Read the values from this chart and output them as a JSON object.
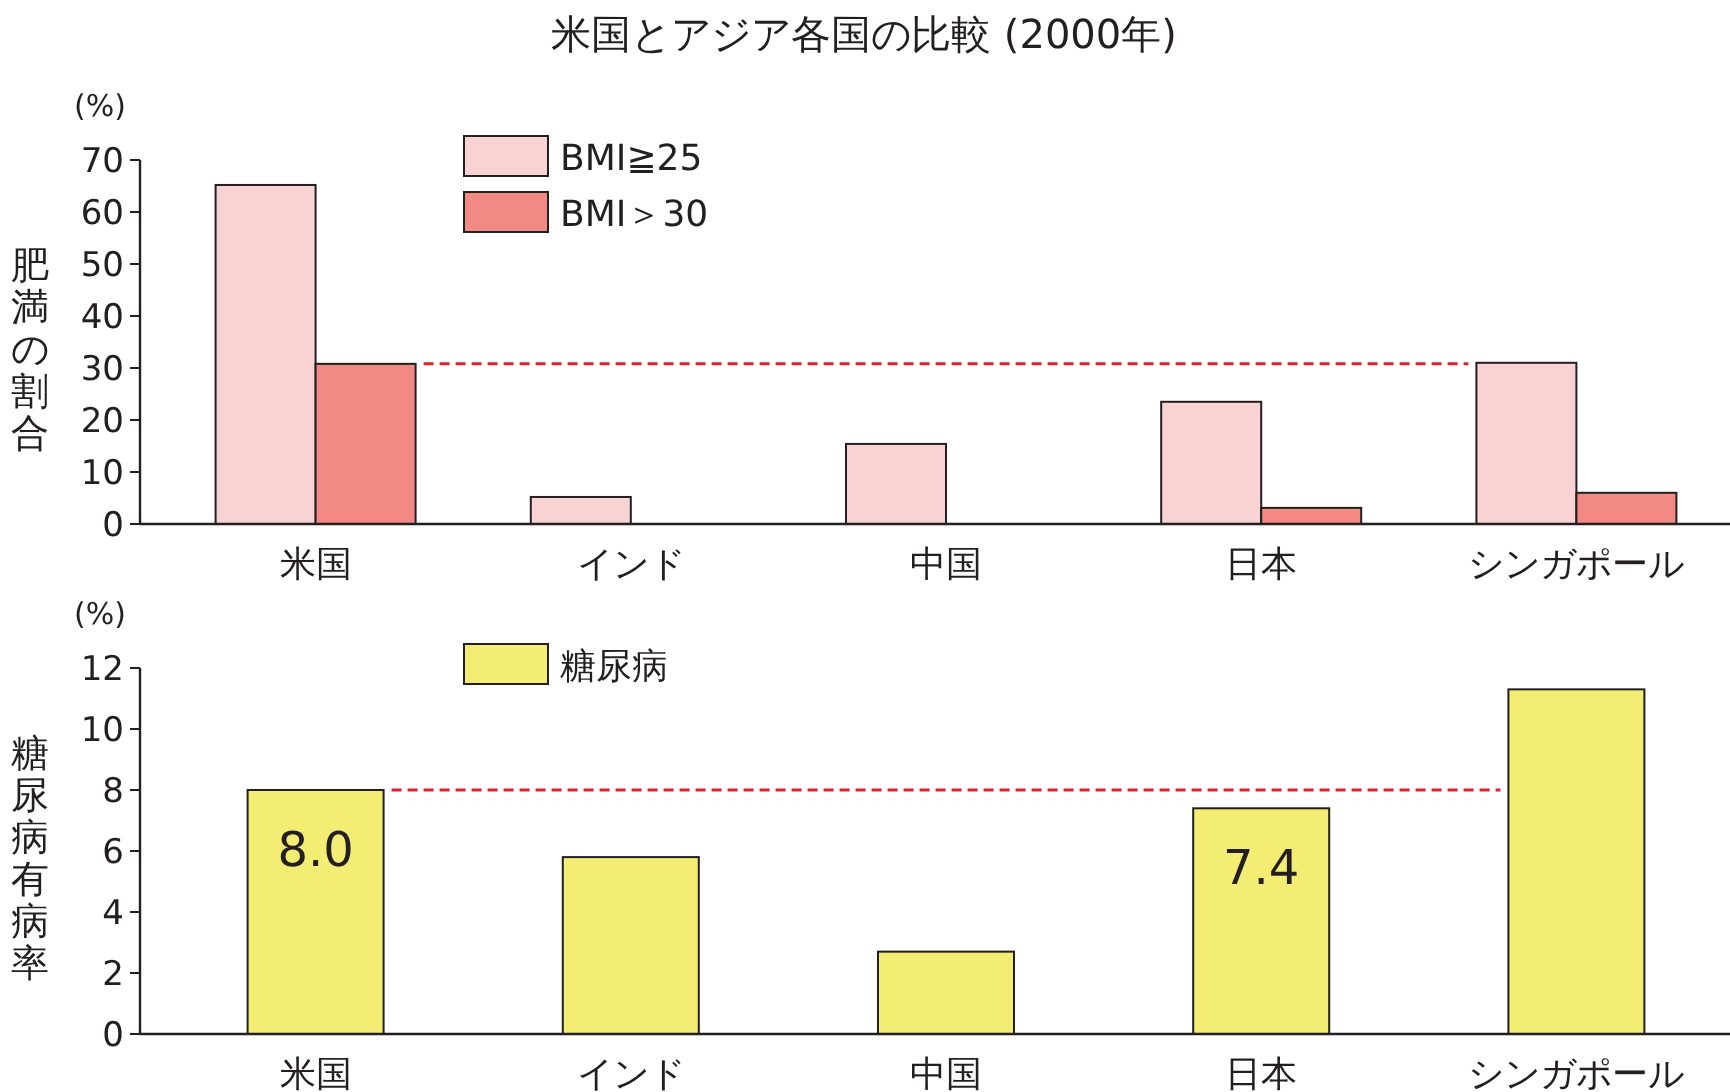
{
  "chart_data": [
    {
      "type": "bar",
      "title": "米国とアジア各国の比較 (2000年)",
      "ylabel": "肥満の割合",
      "annotations": [
        "(%)"
      ],
      "categories": [
        "米国",
        "インド",
        "中国",
        "日本",
        "シンガポール"
      ],
      "series": [
        {
          "name": "BMI≧25",
          "color": "#f9d3d3",
          "values": [
            65.2,
            5.2,
            15.4,
            23.5,
            31.0
          ]
        },
        {
          "name": "BMI＞30",
          "color": "#f28a83",
          "values": [
            30.8,
            null,
            null,
            3.1,
            6.0
          ]
        }
      ],
      "ylim": [
        0,
        70
      ],
      "yticks": [
        0,
        10,
        20,
        30,
        40,
        50,
        60,
        70
      ],
      "grid": false,
      "legend": "top left",
      "ref_lines": [
        {
          "axis": "y",
          "value": 30.8,
          "color": "#e0212b",
          "line_style": "dashed"
        }
      ]
    },
    {
      "type": "bar",
      "ylabel": "糖尿病有病率",
      "annotations": [
        "(%)"
      ],
      "categories": [
        "米国",
        "インド",
        "中国",
        "日本",
        "シンガポール"
      ],
      "series": [
        {
          "name": "糖尿病",
          "color": "#f3ed73",
          "values": [
            8.0,
            5.8,
            2.7,
            7.4,
            11.3
          ],
          "value_labels": [
            "8.0",
            null,
            null,
            "7.4",
            null
          ]
        }
      ],
      "ylim": [
        0,
        12
      ],
      "yticks": [
        0,
        2,
        4,
        6,
        8,
        10,
        12
      ],
      "grid": false,
      "legend": "top left",
      "ref_lines": [
        {
          "axis": "y",
          "value": 8.0,
          "color": "#e0212b",
          "line_style": "dashed"
        }
      ]
    }
  ]
}
